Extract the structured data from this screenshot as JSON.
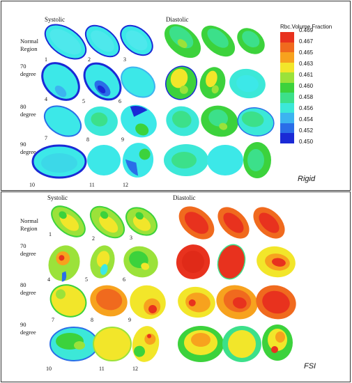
{
  "rigid": {
    "tag": "Rigid",
    "systolic_label": "Systolic",
    "diastolic_label": "Diastolic",
    "rows": [
      {
        "line1": "Normal",
        "line2": "Region"
      },
      {
        "line1": "70",
        "line2": "degree"
      },
      {
        "line1": "80",
        "line2": "degree"
      },
      {
        "line1": "90",
        "line2": "degree"
      }
    ],
    "numbers": [
      "1",
      "2",
      "3",
      "4",
      "5",
      "6",
      "7",
      "8",
      "9",
      "10",
      "11",
      "12"
    ]
  },
  "fsi": {
    "tag": "FSI",
    "systolic_label": "Systolic",
    "diastolic_label": "Diastolic",
    "rows": [
      {
        "line1": "Normal",
        "line2": "Region"
      },
      {
        "line1": "70",
        "line2": "degree"
      },
      {
        "line1": "80",
        "line2": "degree"
      },
      {
        "line1": "90",
        "line2": "degree"
      }
    ],
    "numbers": [
      "1",
      "2",
      "3",
      "4",
      "5",
      "6",
      "7",
      "8",
      "9",
      "10",
      "11",
      "12"
    ]
  },
  "legend": {
    "title": "Rbc.Volume Fraction",
    "values": [
      "0.469",
      "0.467",
      "0.465",
      "0.463",
      "0.461",
      "0.460",
      "0.458",
      "0.456",
      "0.454",
      "0.452",
      "0.450"
    ],
    "colors": [
      "#e8321e",
      "#f06a1e",
      "#f7a21e",
      "#f2e62a",
      "#9be23a",
      "#3cd23c",
      "#3ce08a",
      "#3ce8d8",
      "#3cb4f0",
      "#2a6ee8",
      "#1a2ad6"
    ]
  }
}
